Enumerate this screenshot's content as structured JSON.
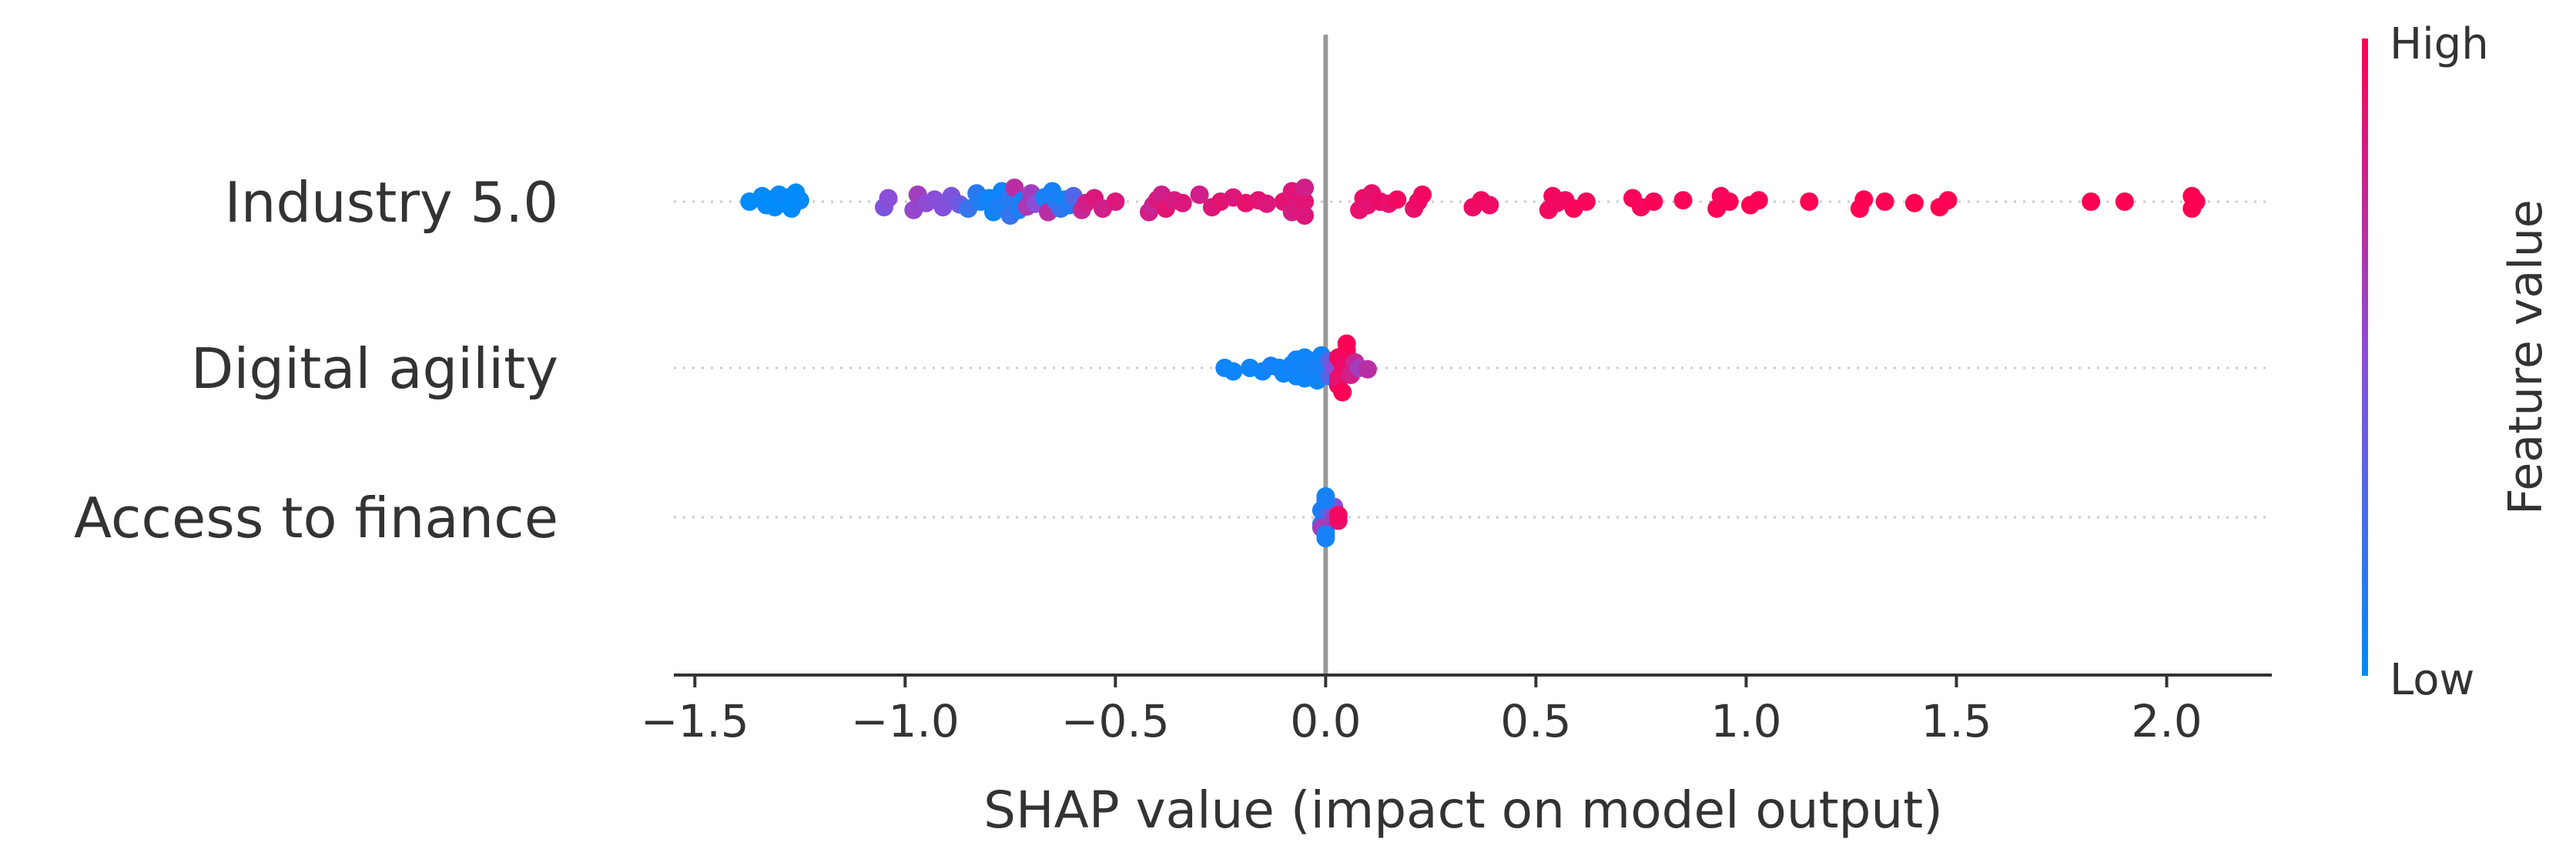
{
  "chart_data": {
    "type": "scatter",
    "subtype": "shap-beeswarm",
    "title": "",
    "xlabel": "SHAP value (impact on model output)",
    "ylabel": "",
    "xlim": [
      -1.55,
      2.25
    ],
    "xticks": [
      -1.5,
      -1.0,
      -0.5,
      0.0,
      0.5,
      1.0,
      1.5,
      2.0
    ],
    "xtick_labels": [
      "−1.5",
      "−1.0",
      "−0.5",
      "0.0",
      "0.5",
      "1.0",
      "1.5",
      "2.0"
    ],
    "features": [
      {
        "name": "Industry 5.0",
        "points": [
          [
            -1.37,
            0.0,
            0.0
          ],
          [
            -1.34,
            -0.08,
            0.0
          ],
          [
            -1.33,
            0.05,
            0.02
          ],
          [
            -1.32,
            -0.03,
            0.0
          ],
          [
            -1.31,
            0.08,
            0.0
          ],
          [
            -1.3,
            -0.1,
            0.02
          ],
          [
            -1.29,
            0.02,
            0.0
          ],
          [
            -1.28,
            -0.06,
            0.03
          ],
          [
            -1.27,
            0.1,
            0.0
          ],
          [
            -1.26,
            -0.13,
            0.0
          ],
          [
            -1.25,
            -0.02,
            0.02
          ],
          [
            -1.05,
            0.08,
            0.45
          ],
          [
            -1.04,
            -0.05,
            0.5
          ],
          [
            -0.98,
            0.12,
            0.55
          ],
          [
            -0.97,
            -0.1,
            0.6
          ],
          [
            -0.95,
            0.02,
            0.52
          ],
          [
            -0.93,
            -0.03,
            0.5
          ],
          [
            -0.91,
            0.08,
            0.48
          ],
          [
            -0.89,
            -0.08,
            0.45
          ],
          [
            -0.87,
            0.04,
            0.4
          ],
          [
            -0.85,
            0.1,
            0.2
          ],
          [
            -0.83,
            -0.12,
            0.15
          ],
          [
            -0.82,
            0.0,
            0.1
          ],
          [
            -0.8,
            -0.05,
            0.05
          ],
          [
            -0.79,
            0.15,
            0.05
          ],
          [
            -0.78,
            0.08,
            0.1
          ],
          [
            -0.77,
            -0.15,
            0.05
          ],
          [
            -0.76,
            0.02,
            0.1
          ],
          [
            -0.75,
            0.2,
            0.2
          ],
          [
            -0.75,
            -0.08,
            0.15
          ],
          [
            -0.74,
            -0.2,
            0.7
          ],
          [
            -0.73,
            0.12,
            0.1
          ],
          [
            -0.72,
            -0.02,
            0.08
          ],
          [
            -0.71,
            0.07,
            0.65
          ],
          [
            -0.7,
            -0.12,
            0.6
          ],
          [
            -0.69,
            0.03,
            0.5
          ],
          [
            -0.67,
            -0.06,
            0.1
          ],
          [
            -0.66,
            0.15,
            0.7
          ],
          [
            -0.65,
            -0.15,
            0.08
          ],
          [
            -0.64,
            0.0,
            0.1
          ],
          [
            -0.63,
            0.1,
            0.2
          ],
          [
            -0.62,
            -0.03,
            0.05
          ],
          [
            -0.61,
            0.05,
            0.12
          ],
          [
            -0.6,
            -0.08,
            0.3
          ],
          [
            -0.58,
            0.12,
            0.75
          ],
          [
            -0.57,
            0.02,
            0.8
          ],
          [
            -0.55,
            -0.05,
            0.85
          ],
          [
            -0.53,
            0.1,
            0.8
          ],
          [
            -0.5,
            0.0,
            0.85
          ],
          [
            -0.42,
            0.15,
            0.8
          ],
          [
            -0.41,
            0.05,
            0.75
          ],
          [
            -0.4,
            -0.03,
            0.85
          ],
          [
            -0.39,
            -0.1,
            0.8
          ],
          [
            -0.38,
            0.1,
            0.88
          ],
          [
            -0.36,
            -0.02,
            0.82
          ],
          [
            -0.34,
            0.02,
            0.85
          ],
          [
            -0.3,
            -0.1,
            0.8
          ],
          [
            -0.27,
            0.08,
            0.85
          ],
          [
            -0.25,
            0.0,
            0.88
          ],
          [
            -0.22,
            -0.06,
            0.85
          ],
          [
            -0.19,
            0.02,
            0.9
          ],
          [
            -0.16,
            -0.02,
            0.88
          ],
          [
            -0.14,
            0.03,
            0.85
          ],
          [
            -0.1,
            0.0,
            0.88
          ],
          [
            -0.08,
            0.15,
            0.8
          ],
          [
            -0.08,
            -0.15,
            0.85
          ],
          [
            -0.07,
            0.1,
            0.85
          ],
          [
            -0.07,
            -0.1,
            0.88
          ],
          [
            -0.06,
            0.05,
            0.82
          ],
          [
            -0.06,
            -0.05,
            0.85
          ],
          [
            -0.05,
            0.0,
            0.88
          ],
          [
            -0.05,
            0.2,
            0.85
          ],
          [
            -0.05,
            -0.2,
            0.8
          ],
          [
            0.08,
            0.12,
            0.9
          ],
          [
            0.09,
            -0.05,
            0.92
          ],
          [
            0.1,
            0.05,
            0.88
          ],
          [
            0.11,
            -0.12,
            0.9
          ],
          [
            0.13,
            0.0,
            0.92
          ],
          [
            0.15,
            0.03,
            0.9
          ],
          [
            0.17,
            -0.03,
            0.95
          ],
          [
            0.21,
            0.1,
            0.9
          ],
          [
            0.22,
            0.0,
            0.92
          ],
          [
            0.23,
            -0.1,
            0.95
          ],
          [
            0.35,
            0.08,
            0.92
          ],
          [
            0.37,
            -0.02,
            0.95
          ],
          [
            0.39,
            0.05,
            0.93
          ],
          [
            0.53,
            0.12,
            0.95
          ],
          [
            0.54,
            -0.08,
            0.96
          ],
          [
            0.55,
            0.02,
            0.94
          ],
          [
            0.57,
            -0.02,
            0.95
          ],
          [
            0.59,
            0.1,
            0.97
          ],
          [
            0.62,
            0.0,
            0.96
          ],
          [
            0.73,
            -0.05,
            0.97
          ],
          [
            0.75,
            0.08,
            0.96
          ],
          [
            0.78,
            0.0,
            0.98
          ],
          [
            0.85,
            -0.02,
            0.97
          ],
          [
            0.93,
            0.1,
            0.98
          ],
          [
            0.94,
            -0.08,
            0.96
          ],
          [
            0.96,
            0.0,
            0.98
          ],
          [
            1.01,
            0.05,
            0.99
          ],
          [
            1.03,
            -0.02,
            0.98
          ],
          [
            1.15,
            0.0,
            0.99
          ],
          [
            1.27,
            0.1,
            0.99
          ],
          [
            1.28,
            -0.03,
            1.0
          ],
          [
            1.33,
            0.0,
            0.99
          ],
          [
            1.4,
            0.02,
            1.0
          ],
          [
            1.46,
            0.08,
            1.0
          ],
          [
            1.48,
            -0.02,
            0.99
          ],
          [
            1.82,
            0.0,
            1.0
          ],
          [
            1.9,
            0.0,
            1.0
          ],
          [
            2.06,
            0.1,
            1.0
          ],
          [
            2.07,
            0.0,
            1.0
          ],
          [
            2.06,
            -0.08,
            1.0
          ]
        ]
      },
      {
        "name": "Digital agility",
        "points": [
          [
            -0.24,
            0.0,
            0.05
          ],
          [
            -0.22,
            0.05,
            0.05
          ],
          [
            -0.18,
            0.0,
            0.05
          ],
          [
            -0.15,
            0.05,
            0.05
          ],
          [
            -0.13,
            -0.03,
            0.08
          ],
          [
            -0.11,
            0.0,
            0.05
          ],
          [
            -0.1,
            0.08,
            0.05
          ],
          [
            -0.08,
            -0.05,
            0.08
          ],
          [
            -0.07,
            0.12,
            0.05
          ],
          [
            -0.07,
            -0.12,
            0.05
          ],
          [
            -0.06,
            0.02,
            0.06
          ],
          [
            -0.05,
            0.15,
            0.05
          ],
          [
            -0.05,
            -0.15,
            0.05
          ],
          [
            -0.04,
            0.05,
            0.06
          ],
          [
            -0.04,
            -0.05,
            0.06
          ],
          [
            -0.03,
            0.1,
            0.06
          ],
          [
            -0.03,
            -0.1,
            0.06
          ],
          [
            -0.02,
            0.0,
            0.08
          ],
          [
            -0.02,
            0.18,
            0.06
          ],
          [
            -0.01,
            -0.18,
            0.06
          ],
          [
            0.0,
            0.05,
            0.08
          ],
          [
            0.0,
            -0.05,
            0.08
          ],
          [
            0.01,
            0.12,
            0.3
          ],
          [
            0.01,
            -0.1,
            0.35
          ],
          [
            0.02,
            0.0,
            0.5
          ],
          [
            0.03,
            0.25,
            0.95
          ],
          [
            0.03,
            0.15,
            0.9
          ],
          [
            0.03,
            -0.15,
            0.95
          ],
          [
            0.04,
            0.05,
            0.9
          ],
          [
            0.04,
            -0.05,
            0.92
          ],
          [
            0.04,
            0.35,
            0.98
          ],
          [
            0.05,
            -0.25,
            0.95
          ],
          [
            0.05,
            -0.35,
            0.98
          ],
          [
            0.06,
            0.1,
            0.8
          ],
          [
            0.07,
            -0.08,
            0.75
          ],
          [
            0.08,
            0.0,
            0.6
          ],
          [
            0.1,
            0.02,
            0.7
          ]
        ]
      },
      {
        "name": "Access to finance",
        "points": [
          [
            0.0,
            0.3,
            0.05
          ],
          [
            0.0,
            -0.3,
            0.05
          ],
          [
            0.0,
            0.2,
            0.08
          ],
          [
            0.0,
            -0.2,
            0.08
          ],
          [
            -0.01,
            0.1,
            0.1
          ],
          [
            -0.01,
            -0.1,
            0.1
          ],
          [
            0.0,
            0.0,
            0.15
          ],
          [
            0.01,
            0.05,
            0.3
          ],
          [
            0.01,
            -0.05,
            0.3
          ],
          [
            -0.01,
            0.15,
            0.6
          ],
          [
            0.02,
            -0.15,
            0.5
          ],
          [
            0.02,
            0.0,
            0.6
          ],
          [
            0.03,
            0.05,
            0.9
          ],
          [
            0.03,
            -0.03,
            0.95
          ],
          [
            0.0,
            0.25,
            0.08
          ],
          [
            0.0,
            -0.25,
            0.08
          ]
        ]
      }
    ],
    "point_format": "[shap_value, vertical_jitter_fraction, feature_value_normalized]",
    "colorbar": {
      "title": "Feature value",
      "high_label": "High",
      "low_label": "Low",
      "low_color": "#008bfb",
      "high_color": "#ff0052"
    },
    "zero_line_color": "#999999"
  }
}
